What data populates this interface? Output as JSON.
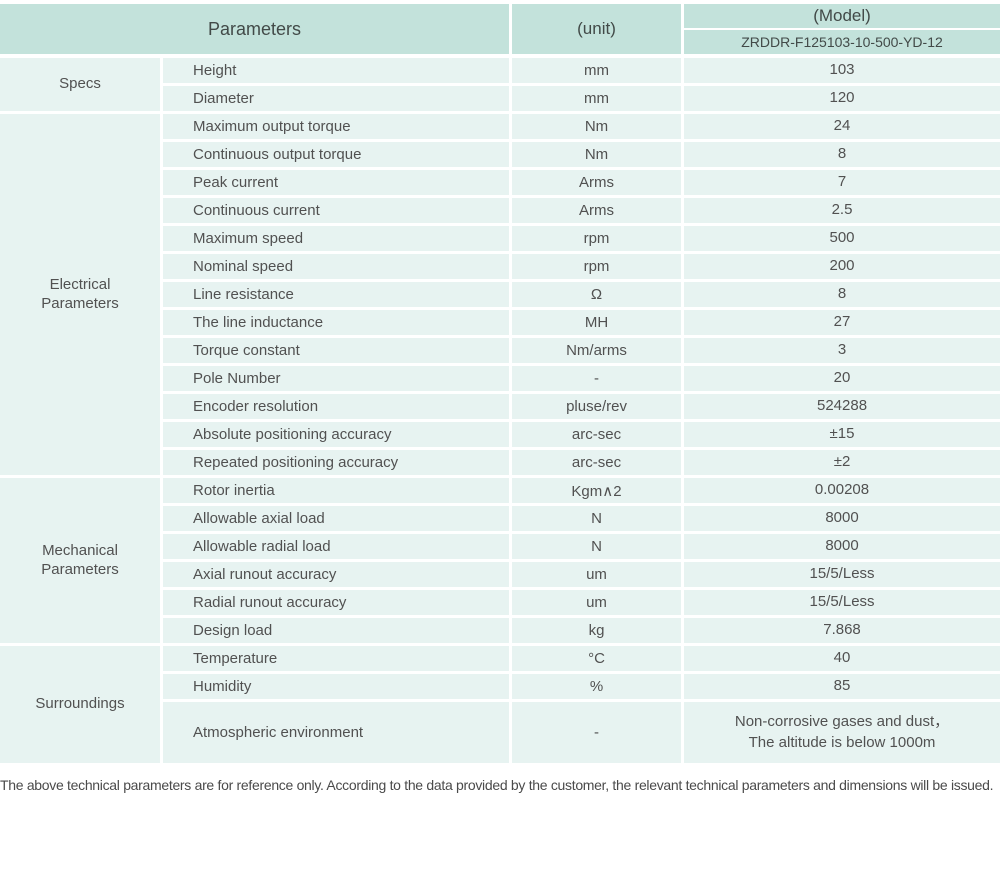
{
  "colors": {
    "header_bg": "#c3e2db",
    "row_bg": "#e7f3f1",
    "separator": "#ffffff",
    "text": "#515151"
  },
  "header": {
    "parameters_label": "Parameters",
    "unit_label": "(unit)",
    "model_label": "(Model)",
    "model_value": "ZRDDR-F125103-10-500-YD-12"
  },
  "sections": [
    {
      "group": "Specs",
      "rows": [
        {
          "name": "Height",
          "unit": "mm",
          "value": "103"
        },
        {
          "name": "Diameter",
          "unit": "mm",
          "value": "120"
        }
      ]
    },
    {
      "group": "Electrical\nParameters",
      "rows": [
        {
          "name": "Maximum output torque",
          "unit": "Nm",
          "value": "24"
        },
        {
          "name": "Continuous output torque",
          "unit": "Nm",
          "value": "8"
        },
        {
          "name": "Peak current",
          "unit": "Arms",
          "value": "7"
        },
        {
          "name": "Continuous current",
          "unit": "Arms",
          "value": "2.5"
        },
        {
          "name": "Maximum speed",
          "unit": "rpm",
          "value": "500"
        },
        {
          "name": "Nominal speed",
          "unit": "rpm",
          "value": "200"
        },
        {
          "name": "Line resistance",
          "unit": "Ω",
          "value": "8"
        },
        {
          "name": "The line inductance",
          "unit": "MH",
          "value": "27"
        },
        {
          "name": "Torque constant",
          "unit": "Nm/arms",
          "value": "3"
        },
        {
          "name": "Pole Number",
          "unit": "-",
          "value": "20"
        },
        {
          "name": "Encoder resolution",
          "unit": "pluse/rev",
          "value": "524288"
        },
        {
          "name": "Absolute positioning accuracy",
          "unit": "arc-sec",
          "value": "±15"
        },
        {
          "name": "Repeated positioning accuracy",
          "unit": "arc-sec",
          "value": "±2"
        }
      ]
    },
    {
      "group": "Mechanical\nParameters",
      "rows": [
        {
          "name": "Rotor inertia",
          "unit": "Kgm∧2",
          "value": "0.00208"
        },
        {
          "name": "Allowable axial load",
          "unit": "N",
          "value": "8000"
        },
        {
          "name": "Allowable radial load",
          "unit": "N",
          "value": "8000"
        },
        {
          "name": "Axial runout accuracy",
          "unit": "um",
          "value": "15/5/Less"
        },
        {
          "name": "Radial runout accuracy",
          "unit": "um",
          "value": "15/5/Less"
        },
        {
          "name": "Design load",
          "unit": "kg",
          "value": "7.868"
        }
      ]
    },
    {
      "group": "Surroundings",
      "rows": [
        {
          "name": "Temperature",
          "unit": "°C",
          "value": "40"
        },
        {
          "name": "Humidity",
          "unit": "%",
          "value": "85"
        },
        {
          "name": "Atmospheric environment",
          "unit": "-",
          "value": "Non-corrosive gases and dust，\nThe altitude is below 1000m",
          "tall": true
        }
      ]
    }
  ],
  "footer_note": "The above technical parameters are for reference only. According to the data provided by the customer, the relevant technical parameters and dimensions will be issued."
}
